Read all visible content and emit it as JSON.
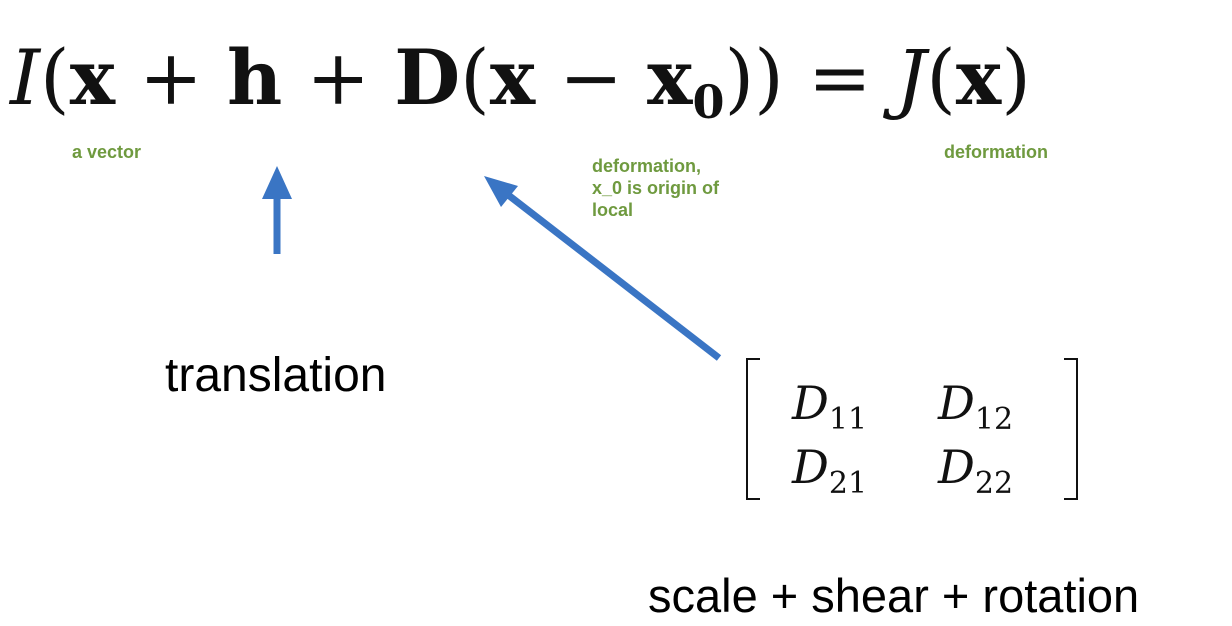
{
  "equation": {
    "I": "I",
    "lparen1": "(",
    "x1": "x",
    "plus1": " + ",
    "h": "h",
    "plus2": " + ",
    "D": "D",
    "lparen2": "(",
    "x2": "x",
    "minus": " − ",
    "x0_base": "x",
    "x0_sub": "0",
    "rparens": "))",
    "equals": " = ",
    "J": "J",
    "lparen3": "(",
    "x3": "x",
    "rparen3": ")"
  },
  "annotations": {
    "vector": "a vector",
    "deformation_origin": "deformation,\nx_0 is origin of\nlocal",
    "deformation": "deformation"
  },
  "labels": {
    "translation": "translation",
    "caption": "scale + shear + rotation"
  },
  "matrix": {
    "d11": {
      "base": "D",
      "sub": "11"
    },
    "d12": {
      "base": "D",
      "sub": "12"
    },
    "d21": {
      "base": "D",
      "sub": "21"
    },
    "d22": {
      "base": "D",
      "sub": "22"
    }
  },
  "colors": {
    "arrow": "#3a75c4",
    "annotation": "#6f9a3f"
  }
}
